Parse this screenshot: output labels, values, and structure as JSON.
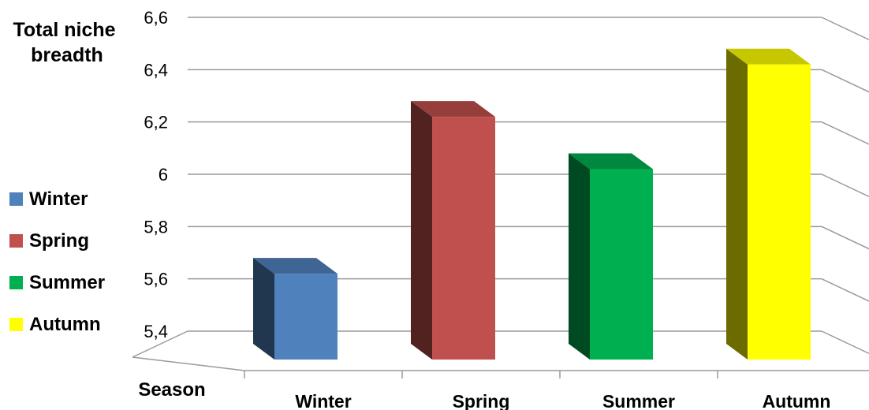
{
  "chart_data": {
    "type": "bar",
    "ylabel": "Total niche breadth",
    "xlabel": "Season",
    "ylim": [
      5.4,
      6.6
    ],
    "yticks": [
      "5,4",
      "5,6",
      "5,8",
      "6",
      "6,2",
      "6,4",
      "6,6"
    ],
    "categories": [
      "Winter",
      "Spring",
      "Summer",
      "Autumn"
    ],
    "values": [
      5.68,
      6.28,
      6.08,
      6.48
    ],
    "colors": [
      "#4f81bd",
      "#c0504d",
      "#00b050",
      "#ffff00"
    ],
    "grid": true,
    "legend": "left",
    "legend_items": [
      "Winter",
      "Spring",
      "Summer",
      "Autumn"
    ]
  }
}
